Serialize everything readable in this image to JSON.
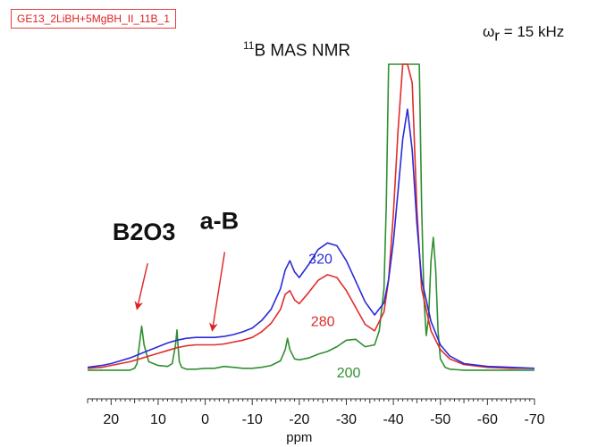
{
  "sample_label": "GE13_2LiBH+5MgBH_II_11B_1",
  "colors": {
    "series_320": "#2a2ad8",
    "series_280": "#e02c2c",
    "series_200": "#2f8f2f",
    "arrow": "#e02020",
    "axis": "#333333"
  },
  "chart_data": {
    "type": "line",
    "title_sup": "11",
    "title": "B MAS NMR",
    "spin_rate_symbol": "ω",
    "spin_rate_sub": "r",
    "spin_rate_value": "= 15 kHz",
    "xlabel": "ppm",
    "xlim": [
      25,
      -70
    ],
    "xticks": [
      20,
      10,
      0,
      -10,
      -20,
      -30,
      -40,
      -50,
      -60,
      -70
    ],
    "xtick_labels": [
      "20",
      "10",
      "0",
      "-10",
      "-20",
      "-30",
      "-40",
      "-50",
      "-60",
      "-70"
    ],
    "grid": false,
    "series": [
      {
        "name": "320",
        "x": [
          25,
          22,
          20,
          18,
          16,
          14,
          12,
          10,
          8,
          6,
          4,
          2,
          0,
          -2,
          -4,
          -6,
          -8,
          -10,
          -12,
          -14,
          -16,
          -17,
          -18,
          -19,
          -20,
          -22,
          -24,
          -26,
          -28,
          -30,
          -32,
          -34,
          -36,
          -38,
          -39,
          -40,
          -41,
          -42,
          -43,
          -44,
          -45,
          -46,
          -48,
          -50,
          -52,
          -55,
          -60,
          -65,
          -70
        ],
        "y": [
          0.06,
          0.08,
          0.1,
          0.13,
          0.16,
          0.2,
          0.24,
          0.28,
          0.32,
          0.35,
          0.37,
          0.38,
          0.38,
          0.38,
          0.39,
          0.41,
          0.44,
          0.48,
          0.56,
          0.68,
          0.9,
          1.1,
          1.2,
          1.08,
          1.02,
          1.16,
          1.32,
          1.39,
          1.36,
          1.2,
          0.98,
          0.76,
          0.62,
          0.75,
          1.0,
          1.4,
          1.95,
          2.5,
          2.82,
          2.38,
          1.6,
          1.0,
          0.55,
          0.3,
          0.18,
          0.1,
          0.07,
          0.06,
          0.05
        ]
      },
      {
        "name": "280",
        "x": [
          25,
          22,
          20,
          18,
          16,
          14,
          12,
          10,
          8,
          6,
          4,
          2,
          0,
          -2,
          -4,
          -6,
          -8,
          -10,
          -12,
          -14,
          -16,
          -17,
          -18,
          -19,
          -20,
          -22,
          -24,
          -26,
          -28,
          -30,
          -32,
          -34,
          -36,
          -38,
          -39,
          -40,
          -41,
          -42,
          -43,
          -44,
          -45,
          -46,
          -48,
          -50,
          -52,
          -55,
          -60,
          -65,
          -70
        ],
        "y": [
          0.05,
          0.06,
          0.08,
          0.1,
          0.12,
          0.15,
          0.18,
          0.21,
          0.24,
          0.27,
          0.29,
          0.3,
          0.3,
          0.3,
          0.31,
          0.33,
          0.35,
          0.38,
          0.44,
          0.53,
          0.68,
          0.84,
          0.88,
          0.78,
          0.74,
          0.86,
          0.99,
          1.05,
          1.02,
          0.88,
          0.7,
          0.52,
          0.45,
          0.65,
          1.0,
          1.7,
          2.6,
          3.3,
          3.3,
          3.1,
          1.75,
          0.9,
          0.45,
          0.25,
          0.15,
          0.09,
          0.06,
          0.05,
          0.05
        ]
      },
      {
        "name": "200",
        "x": [
          25,
          20,
          16,
          15,
          14.5,
          14,
          13.5,
          13,
          12,
          10,
          8,
          7,
          6.3,
          6,
          5.8,
          5.5,
          5,
          4,
          2,
          0,
          -2,
          -4,
          -6,
          -8,
          -10,
          -12,
          -14,
          -16,
          -17,
          -17.5,
          -18,
          -19,
          -20,
          -22,
          -24,
          -26,
          -28,
          -30,
          -32,
          -34,
          -36,
          -37,
          -38,
          -38.5,
          -39,
          -39.5,
          -40,
          -44,
          -45.5,
          -46,
          -46.5,
          -47,
          -47.5,
          -48,
          -48.5,
          -49,
          -49.5,
          -50,
          -51,
          -52,
          -55,
          -60,
          -65,
          -70
        ],
        "y": [
          0.03,
          0.03,
          0.03,
          0.05,
          0.1,
          0.3,
          0.5,
          0.3,
          0.12,
          0.08,
          0.07,
          0.1,
          0.3,
          0.46,
          0.3,
          0.12,
          0.06,
          0.04,
          0.04,
          0.05,
          0.05,
          0.07,
          0.06,
          0.05,
          0.05,
          0.06,
          0.08,
          0.13,
          0.25,
          0.37,
          0.25,
          0.15,
          0.14,
          0.16,
          0.2,
          0.23,
          0.28,
          0.35,
          0.36,
          0.28,
          0.3,
          0.45,
          0.9,
          1.8,
          3.3,
          3.3,
          3.3,
          3.3,
          3.3,
          1.8,
          0.8,
          0.4,
          0.6,
          1.2,
          1.45,
          1.1,
          0.45,
          0.15,
          0.06,
          0.04,
          0.03,
          0.03,
          0.03,
          0.03
        ]
      }
    ],
    "series_labels": [
      {
        "text": "320",
        "x": -24.5,
        "y": 1.17
      },
      {
        "text": "280",
        "x": -25,
        "y": 0.5
      },
      {
        "text": "200",
        "x": -30.5,
        "y": -0.05
      }
    ],
    "annotations": [
      {
        "text": "B2O3",
        "x": 13,
        "y": 1.42,
        "tip_x": 14.5,
        "tip_y": 0.68
      },
      {
        "text": "a-B",
        "x": -3,
        "y": 1.54,
        "tip_x": -1.5,
        "tip_y": 0.45
      }
    ]
  }
}
